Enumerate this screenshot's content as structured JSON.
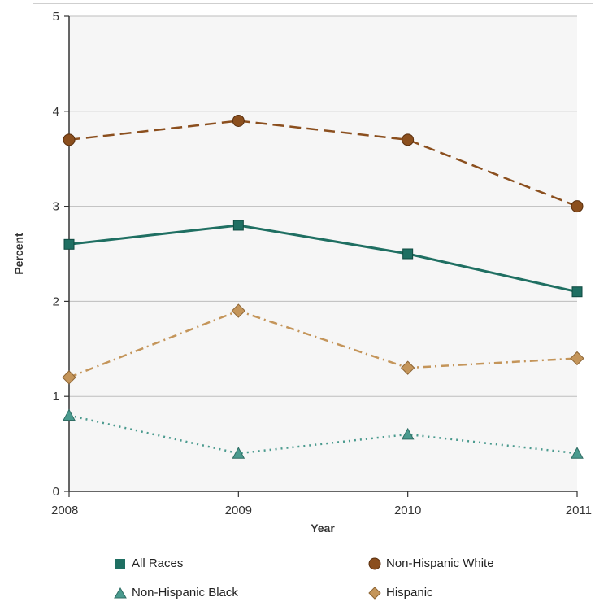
{
  "chart_data": {
    "type": "line",
    "xlabel": "Year",
    "ylabel": "Percent",
    "x": [
      2008,
      2009,
      2010,
      2011
    ],
    "x_tick_labels": [
      "2008",
      "2009",
      "2010",
      "2011"
    ],
    "y_tick_labels": [
      "0",
      "1",
      "2",
      "3",
      "4",
      "5"
    ],
    "ylim": [
      0,
      5
    ],
    "grid": true,
    "legend_position": "bottom",
    "series": [
      {
        "name": "All Races",
        "values": [
          2.6,
          2.8,
          2.5,
          2.1
        ],
        "color": "#1f6f62",
        "marker": "square",
        "line": "solid"
      },
      {
        "name": "Non-Hispanic White",
        "values": [
          3.7,
          3.9,
          3.7,
          3.0
        ],
        "color": "#8b4f1e",
        "marker": "circle",
        "line": "dashed"
      },
      {
        "name": "Non-Hispanic Black",
        "values": [
          0.8,
          0.4,
          0.6,
          0.4
        ],
        "color": "#4a9a8e",
        "marker": "triangle",
        "line": "dotted"
      },
      {
        "name": "Hispanic",
        "values": [
          1.2,
          1.9,
          1.3,
          1.4
        ],
        "color": "#c4955a",
        "marker": "diamond",
        "line": "dashdot"
      }
    ]
  }
}
